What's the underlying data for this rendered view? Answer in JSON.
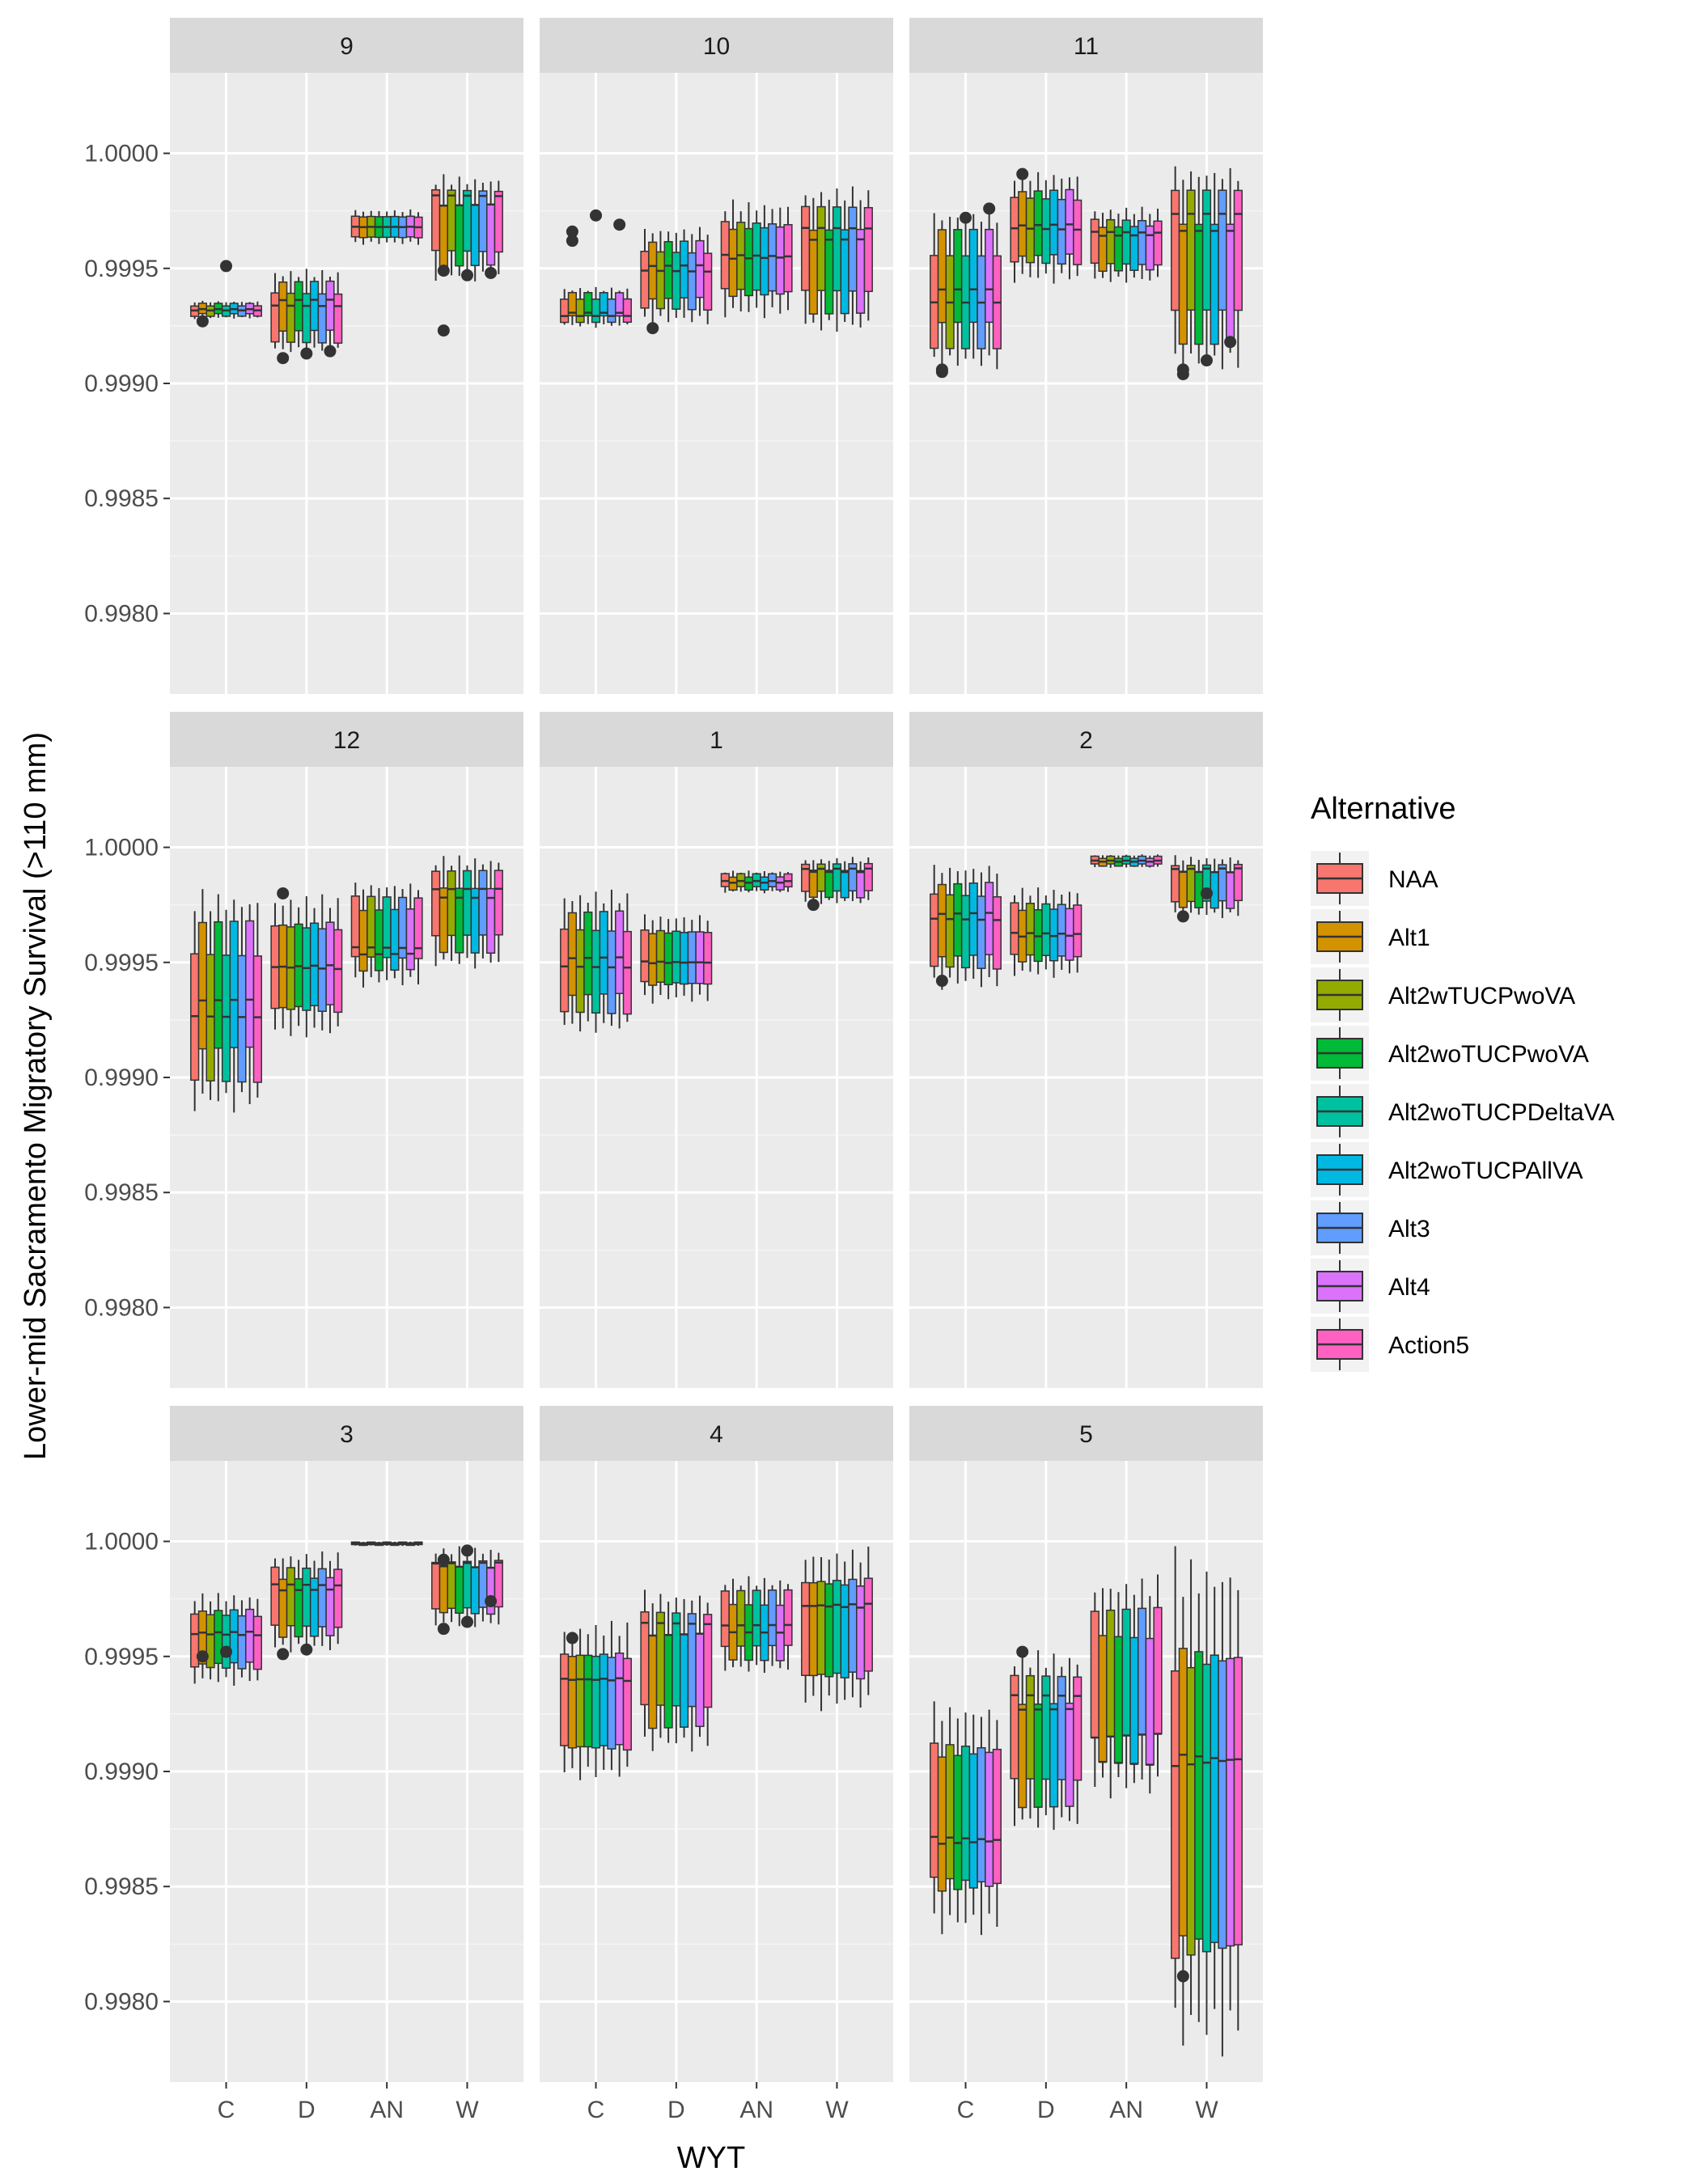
{
  "chart_data": {
    "type": "boxplot",
    "xlabel": "WYT",
    "ylabel": "Lower-mid Sacramento Migratory Survival (>110 mm)",
    "categories": [
      "C",
      "D",
      "AN",
      "W"
    ],
    "ylim": [
      0.99765,
      1.00035
    ],
    "yticks": [
      0.998,
      0.9985,
      0.999,
      0.9995,
      1.0
    ],
    "ytick_labels": [
      "0.9980",
      "0.9985",
      "0.9990",
      "0.9995",
      "1.0000"
    ],
    "grid": true,
    "legend": {
      "title": "Alternative",
      "position": "right",
      "entries": [
        "NAA",
        "Alt1",
        "Alt2wTUCPwoVA",
        "Alt2woTUCPwoVA",
        "Alt2woTUCPDeltaVA",
        "Alt2woTUCPAllVA",
        "Alt3",
        "Alt4",
        "Action5"
      ],
      "colors": [
        "#F8766D",
        "#D39200",
        "#93AA00",
        "#00BA38",
        "#00C19F",
        "#00B9E3",
        "#619CFF",
        "#DB72FB",
        "#FF61C3"
      ]
    },
    "panels": [
      {
        "label": "9",
        "groups": [
          {
            "range": [
              0.99928,
              0.99936
            ],
            "mid": 0.99932,
            "outliers": [
              0.99927,
              0.99951
            ]
          },
          {
            "range": [
              0.99912,
              0.9995
            ],
            "mid": 0.99935,
            "outliers": [
              0.99911,
              0.99913,
              0.99914
            ]
          },
          {
            "range": [
              0.9996,
              0.99976
            ],
            "mid": 0.99968,
            "outliers": []
          },
          {
            "range": [
              0.99944,
              0.99991
            ],
            "mid": 0.9998,
            "outliers": [
              0.99923,
              0.99947,
              0.99948,
              0.99949
            ]
          }
        ]
      },
      {
        "label": "10",
        "groups": [
          {
            "range": [
              0.99924,
              0.99942
            ],
            "mid": 0.9993,
            "outliers": [
              0.99966,
              0.99973,
              0.99969,
              0.99962
            ]
          },
          {
            "range": [
              0.99925,
              0.99969
            ],
            "mid": 0.9995,
            "outliers": [
              0.99924
            ]
          },
          {
            "range": [
              0.99928,
              0.9998
            ],
            "mid": 0.99955,
            "outliers": []
          },
          {
            "range": [
              0.99921,
              0.99986
            ],
            "mid": 0.99965,
            "outliers": []
          }
        ]
      },
      {
        "label": "11",
        "groups": [
          {
            "range": [
              0.99905,
              0.99977
            ],
            "mid": 0.99938,
            "outliers": [
              0.99906,
              0.99972,
              0.99976,
              0.99905
            ]
          },
          {
            "range": [
              0.99943,
              0.99993
            ],
            "mid": 0.99968,
            "outliers": [
              0.99991
            ]
          },
          {
            "range": [
              0.99943,
              0.99977
            ],
            "mid": 0.99965,
            "outliers": []
          },
          {
            "range": [
              0.99904,
              0.99997
            ],
            "mid": 0.9997,
            "outliers": [
              0.99906,
              0.9991,
              0.99918,
              0.99904
            ]
          }
        ]
      },
      {
        "label": "12",
        "groups": [
          {
            "range": [
              0.99884,
              0.99982
            ],
            "mid": 0.9993,
            "outliers": []
          },
          {
            "range": [
              0.99916,
              0.9998
            ],
            "mid": 0.99948,
            "outliers": [
              0.9998
            ]
          },
          {
            "range": [
              0.99939,
              0.99986
            ],
            "mid": 0.99955,
            "outliers": []
          },
          {
            "range": [
              0.99947,
              0.99997
            ],
            "mid": 0.9998,
            "outliers": []
          }
        ]
      },
      {
        "label": "1",
        "groups": [
          {
            "range": [
              0.99918,
              0.99982
            ],
            "mid": 0.9995,
            "outliers": []
          },
          {
            "range": [
              0.99932,
              0.99972
            ],
            "mid": 0.9995,
            "outliers": []
          },
          {
            "range": [
              0.9998,
              0.9999
            ],
            "mid": 0.99985,
            "outliers": []
          },
          {
            "range": [
              0.99975,
              0.99996
            ],
            "mid": 0.9999,
            "outliers": [
              0.99975
            ]
          }
        ]
      },
      {
        "label": "2",
        "groups": [
          {
            "range": [
              0.99938,
              0.99994
            ],
            "mid": 0.9997,
            "outliers": [
              0.99942
            ]
          },
          {
            "range": [
              0.99943,
              0.99983
            ],
            "mid": 0.99962,
            "outliers": []
          },
          {
            "range": [
              0.99991,
              0.99997
            ],
            "mid": 0.99994,
            "outliers": []
          },
          {
            "range": [
              0.99969,
              0.99997
            ],
            "mid": 0.9999,
            "outliers": [
              0.9997,
              0.9998
            ]
          }
        ]
      },
      {
        "label": "3",
        "groups": [
          {
            "range": [
              0.99937,
              0.99978
            ],
            "mid": 0.9996,
            "outliers": [
              0.9995,
              0.99952
            ]
          },
          {
            "range": [
              0.99951,
              0.99996
            ],
            "mid": 0.9998,
            "outliers": [
              0.99951,
              0.99953
            ]
          },
          {
            "range": [
              0.99998,
              1.0
            ],
            "mid": 0.99999,
            "outliers": []
          },
          {
            "range": [
              0.99962,
              0.99998
            ],
            "mid": 0.9999,
            "outliers": [
              0.99962,
              0.99965,
              0.99974,
              0.99992,
              0.99996
            ]
          }
        ]
      },
      {
        "label": "4",
        "groups": [
          {
            "range": [
              0.99895,
              0.99966
            ],
            "mid": 0.9994,
            "outliers": [
              0.99958
            ]
          },
          {
            "range": [
              0.99908,
              0.9998
            ],
            "mid": 0.99962,
            "outliers": []
          },
          {
            "range": [
              0.99942,
              0.99985
            ],
            "mid": 0.99962,
            "outliers": []
          },
          {
            "range": [
              0.99926,
              0.99998
            ],
            "mid": 0.99972,
            "outliers": []
          }
        ]
      },
      {
        "label": "5",
        "groups": [
          {
            "range": [
              0.99828,
              0.99932
            ],
            "mid": 0.9987,
            "outliers": []
          },
          {
            "range": [
              0.99873,
              0.99953
            ],
            "mid": 0.9993,
            "outliers": [
              0.99952
            ]
          },
          {
            "range": [
              0.99888,
              0.99986
            ],
            "mid": 0.999,
            "outliers": []
          },
          {
            "range": [
              0.99775,
              0.99998
            ],
            "mid": 0.99905,
            "outliers": [
              0.99811
            ]
          }
        ]
      }
    ]
  }
}
